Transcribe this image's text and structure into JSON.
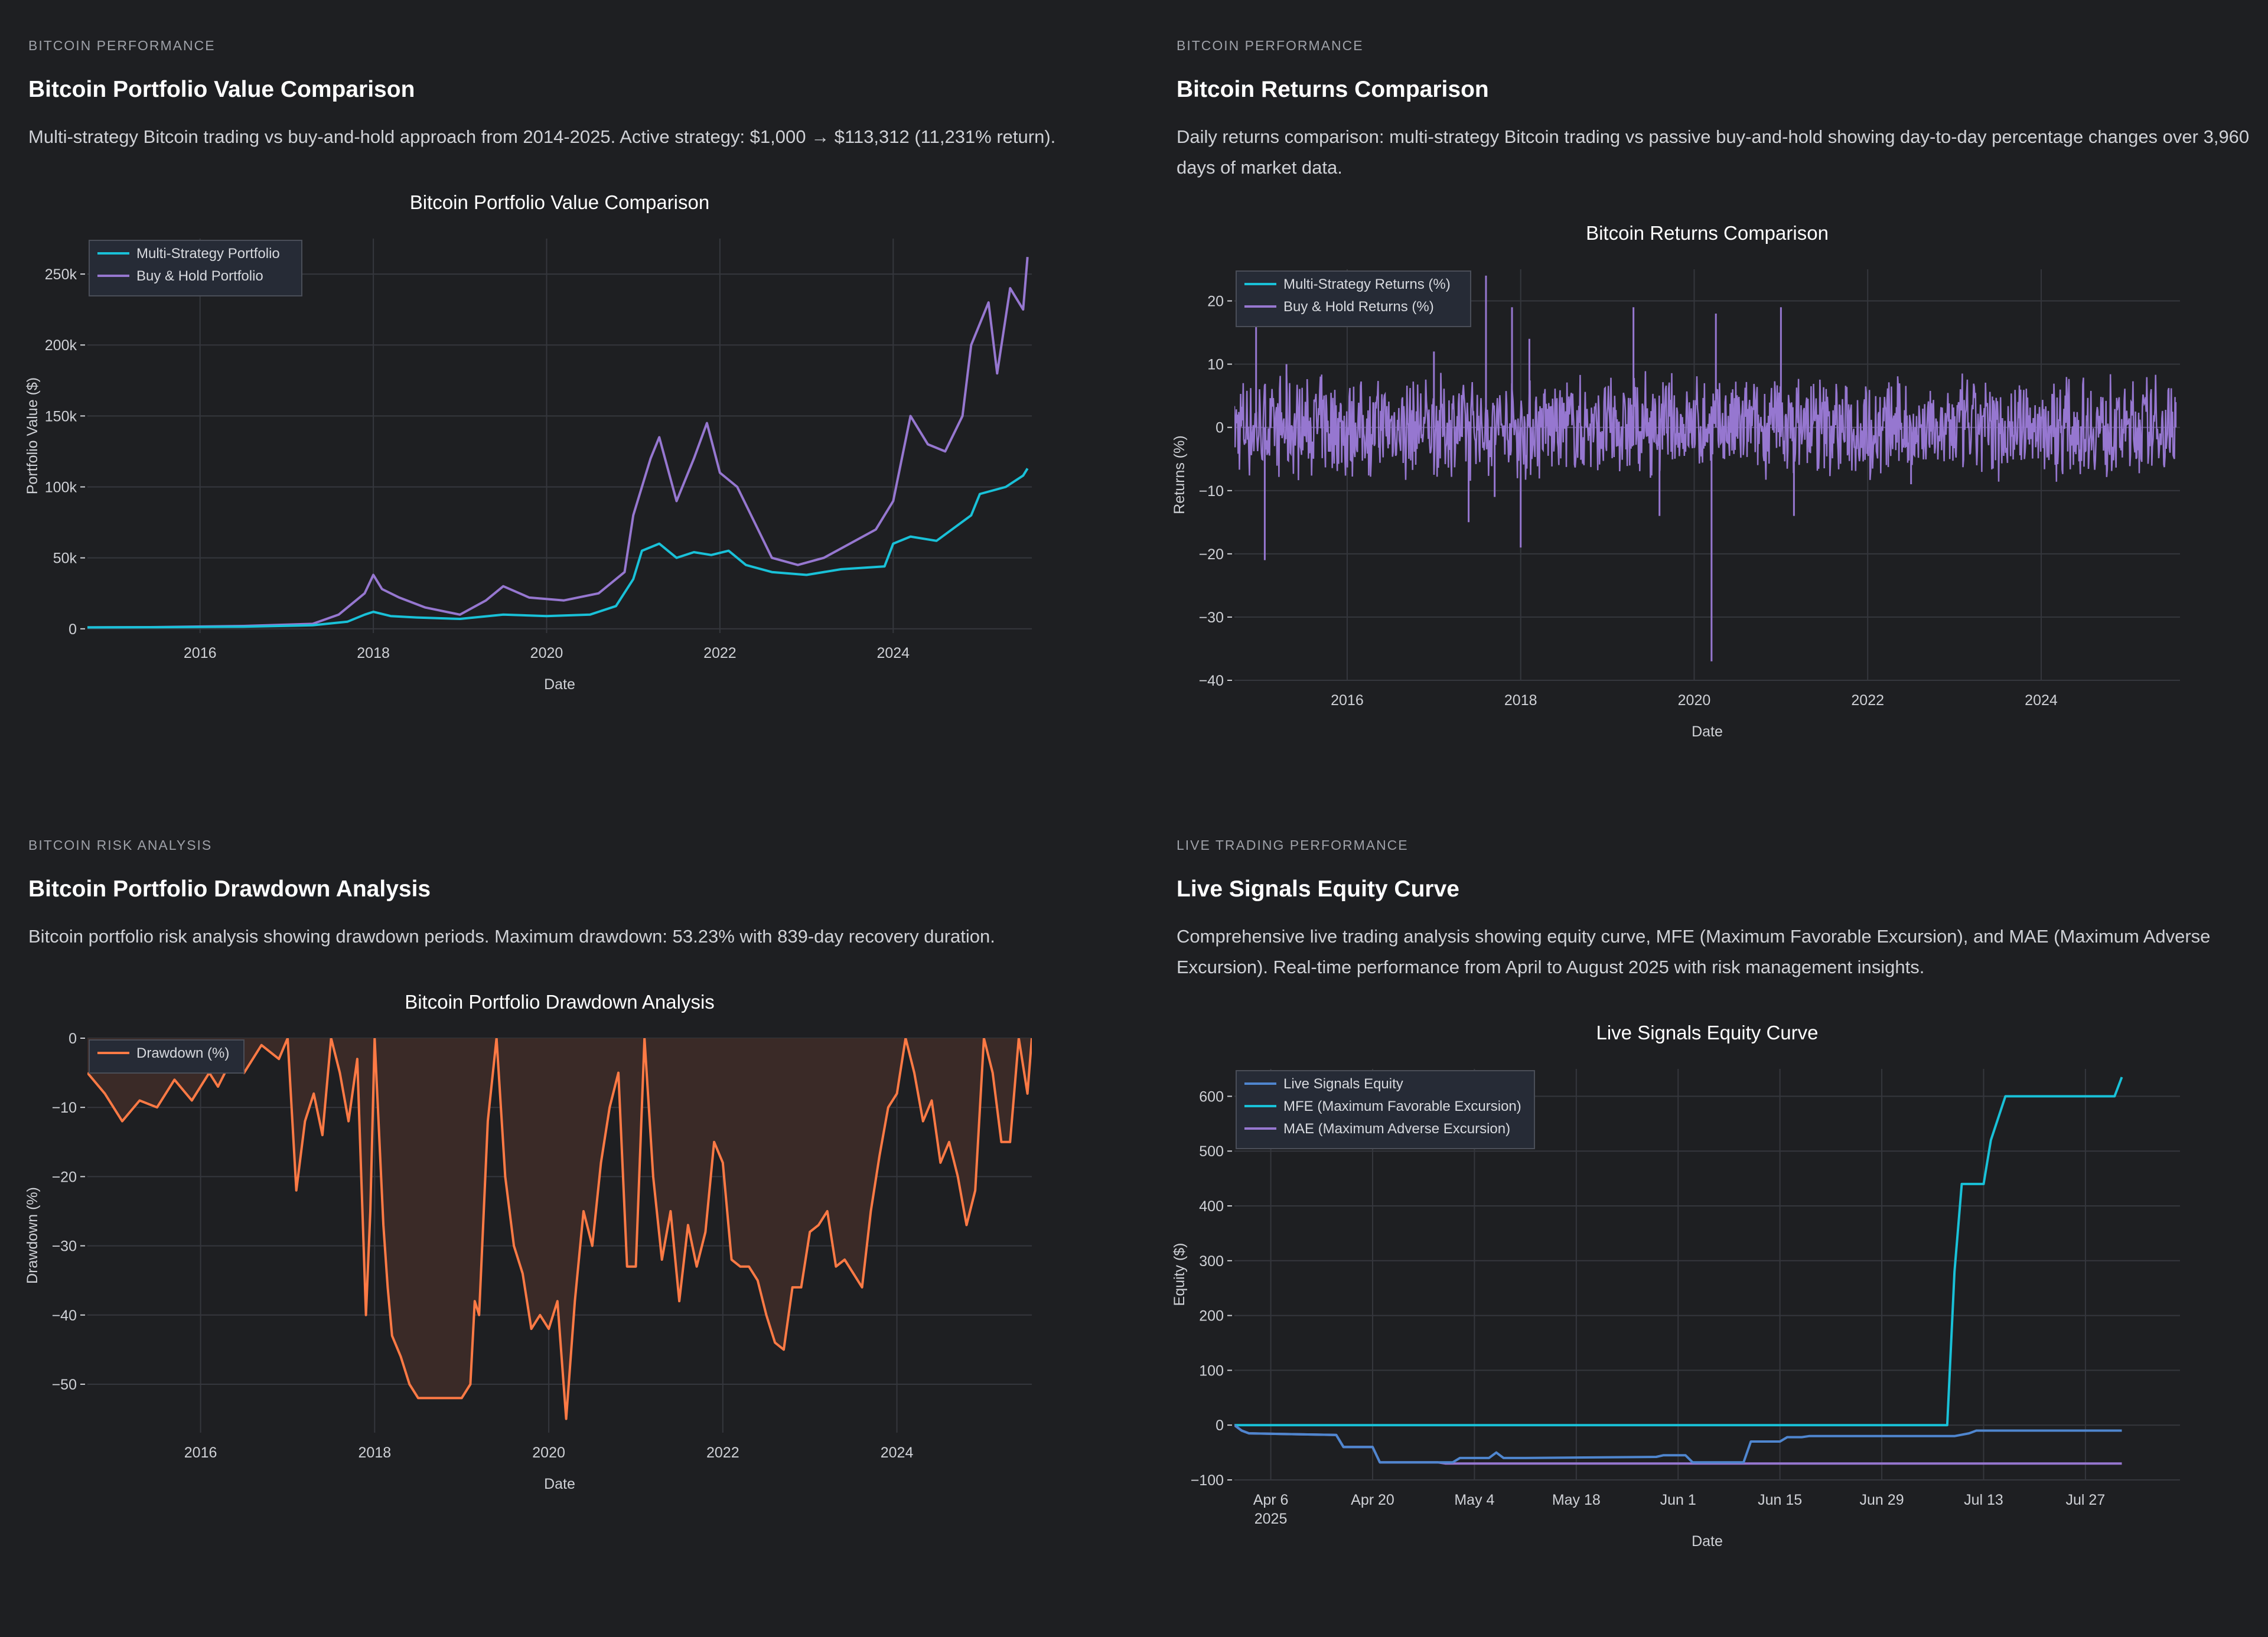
{
  "colors": {
    "background": "#1e1f22",
    "grid": "#35373d",
    "axis_text": "#cfd1d6",
    "legend_bg": "#262b36",
    "legend_border": "#4a4e58",
    "cyan": "#19c1d8",
    "purple": "#9677d0",
    "blue": "#4f86cf",
    "orange": "#ff7a45",
    "drawdown_fill": "#3a2a27"
  },
  "panels": [
    {
      "eyebrow": "BITCOIN PERFORMANCE",
      "title": "Bitcoin Portfolio Value Comparison",
      "description": "Multi-strategy Bitcoin trading vs buy-and-hold approach from 2014-2025. Active strategy: $1,000 → $113,312 (11,231% return)."
    },
    {
      "eyebrow": "BITCOIN PERFORMANCE",
      "title": "Bitcoin Returns Comparison",
      "description": "Daily returns comparison: multi-strategy Bitcoin trading vs passive buy-and-hold showing day-to-day percentage changes over 3,960 days of market data."
    },
    {
      "eyebrow": "BITCOIN RISK ANALYSIS",
      "title": "Bitcoin Portfolio Drawdown Analysis",
      "description": "Bitcoin portfolio risk analysis showing drawdown periods. Maximum drawdown: 53.23% with 839-day recovery duration."
    },
    {
      "eyebrow": "LIVE TRADING PERFORMANCE",
      "title": "Live Signals Equity Curve",
      "description": "Comprehensive live trading analysis showing equity curve, MFE (Maximum Favorable Excursion), and MAE (Maximum Adverse Excursion). Real-time performance from April to August 2025 with risk management insights."
    }
  ],
  "chart_data": [
    {
      "type": "line",
      "title": "Bitcoin Portfolio Value Comparison",
      "xlabel": "Date",
      "ylabel": "Portfolio Value ($)",
      "xlim": [
        2014.7,
        2025.6
      ],
      "ylim": [
        -3000,
        275000
      ],
      "xticks": [
        2016,
        2018,
        2020,
        2022,
        2024
      ],
      "xtick_labels": [
        "2016",
        "2018",
        "2020",
        "2022",
        "2024"
      ],
      "yticks": [
        0,
        50000,
        100000,
        150000,
        200000,
        250000
      ],
      "ytick_labels": [
        "0",
        "50k",
        "100k",
        "150k",
        "200k",
        "250k"
      ],
      "legend_position": "top-left",
      "series": [
        {
          "name": "Multi-Strategy Portfolio",
          "color": "#19c1d8",
          "x": [
            2014.7,
            2015.5,
            2016.5,
            2017.3,
            2017.7,
            2017.9,
            2018.0,
            2018.2,
            2018.5,
            2019.0,
            2019.5,
            2020.0,
            2020.5,
            2020.8,
            2021.0,
            2021.1,
            2021.3,
            2021.5,
            2021.7,
            2021.9,
            2022.1,
            2022.3,
            2022.6,
            2023.0,
            2023.4,
            2023.9,
            2024.0,
            2024.2,
            2024.5,
            2024.9,
            2025.0,
            2025.3,
            2025.5,
            2025.55
          ],
          "y": [
            1000,
            1100,
            1500,
            2500,
            5000,
            10000,
            12000,
            9000,
            8000,
            7000,
            10000,
            9000,
            10000,
            16000,
            35000,
            55000,
            60000,
            50000,
            54000,
            52000,
            55000,
            45000,
            40000,
            38000,
            42000,
            44000,
            60000,
            65000,
            62000,
            80000,
            95000,
            100000,
            108000,
            113000
          ]
        },
        {
          "name": "Buy & Hold Portfolio",
          "color": "#9677d0",
          "x": [
            2014.7,
            2015.5,
            2016.5,
            2017.3,
            2017.6,
            2017.9,
            2018.0,
            2018.1,
            2018.3,
            2018.6,
            2019.0,
            2019.3,
            2019.5,
            2019.8,
            2020.2,
            2020.6,
            2020.9,
            2021.0,
            2021.2,
            2021.3,
            2021.5,
            2021.7,
            2021.85,
            2022.0,
            2022.2,
            2022.4,
            2022.6,
            2022.9,
            2023.2,
            2023.5,
            2023.8,
            2024.0,
            2024.2,
            2024.4,
            2024.6,
            2024.8,
            2024.9,
            2025.1,
            2025.2,
            2025.35,
            2025.5,
            2025.55
          ],
          "y": [
            1000,
            1200,
            2000,
            3500,
            10000,
            25000,
            38000,
            28000,
            22000,
            15000,
            10000,
            20000,
            30000,
            22000,
            20000,
            25000,
            40000,
            80000,
            120000,
            135000,
            90000,
            120000,
            145000,
            110000,
            100000,
            75000,
            50000,
            45000,
            50000,
            60000,
            70000,
            90000,
            150000,
            130000,
            125000,
            150000,
            200000,
            230000,
            180000,
            240000,
            225000,
            262000
          ]
        }
      ]
    },
    {
      "type": "line",
      "title": "Bitcoin Returns Comparison",
      "xlabel": "Date",
      "ylabel": "Returns (%)",
      "xlim": [
        2014.7,
        2025.6
      ],
      "ylim": [
        -40,
        25
      ],
      "xticks": [
        2016,
        2018,
        2020,
        2022,
        2024
      ],
      "xtick_labels": [
        "2016",
        "2018",
        "2020",
        "2022",
        "2024"
      ],
      "yticks": [
        -40,
        -30,
        -20,
        -10,
        0,
        10,
        20
      ],
      "ytick_labels": [
        "−40",
        "−30",
        "−20",
        "−10",
        "0",
        "10",
        "20"
      ],
      "legend_position": "top-left",
      "series": [
        {
          "name": "Multi-Strategy Returns (%)",
          "color": "#19c1d8",
          "x": [
            2014.7,
            2025.55
          ],
          "y": [
            0,
            0
          ]
        },
        {
          "name": "Buy & Hold Returns (%)",
          "color": "#9677d0",
          "x": [
            2014.7,
            2014.95,
            2015.05,
            2015.3,
            2017.0,
            2017.4,
            2017.6,
            2017.7,
            2017.9,
            2018.0,
            2018.1,
            2019.3,
            2019.6,
            2020.2,
            2020.25,
            2021.0,
            2021.15,
            2022.5,
            2025.55
          ],
          "y": [
            0,
            18,
            -21,
            10,
            12,
            -15,
            24,
            -11,
            19,
            -19,
            14,
            19,
            -14,
            -37,
            18,
            19,
            -14,
            -9,
            4
          ]
        }
      ]
    },
    {
      "type": "area",
      "title": "Bitcoin Portfolio Drawdown Analysis",
      "xlabel": "Date",
      "ylabel": "Drawdown (%)",
      "xlim": [
        2014.7,
        2025.55
      ],
      "ylim": [
        -57,
        0
      ],
      "xticks": [
        2016,
        2018,
        2020,
        2022,
        2024
      ],
      "xtick_labels": [
        "2016",
        "2018",
        "2020",
        "2022",
        "2024"
      ],
      "yticks": [
        -50,
        -40,
        -30,
        -20,
        -10,
        0
      ],
      "ytick_labels": [
        "−50",
        "−40",
        "−30",
        "−20",
        "−10",
        "0"
      ],
      "legend_position": "top-left",
      "series": [
        {
          "name": "Drawdown (%)",
          "color": "#ff7a45",
          "x": [
            2014.7,
            2014.9,
            2015.1,
            2015.3,
            2015.5,
            2015.7,
            2015.9,
            2016.1,
            2016.2,
            2016.4,
            2016.5,
            2016.7,
            2016.9,
            2017.0,
            2017.1,
            2017.2,
            2017.3,
            2017.4,
            2017.5,
            2017.6,
            2017.7,
            2017.8,
            2017.9,
            2017.95,
            2018.0,
            2018.1,
            2018.15,
            2018.2,
            2018.3,
            2018.4,
            2018.5,
            2018.6,
            2018.7,
            2018.8,
            2018.9,
            2019.0,
            2019.1,
            2019.15,
            2019.2,
            2019.3,
            2019.4,
            2019.5,
            2019.6,
            2019.7,
            2019.8,
            2019.9,
            2020.0,
            2020.1,
            2020.2,
            2020.3,
            2020.4,
            2020.5,
            2020.6,
            2020.7,
            2020.8,
            2020.9,
            2021.0,
            2021.1,
            2021.2,
            2021.3,
            2021.4,
            2021.5,
            2021.6,
            2021.7,
            2021.8,
            2021.9,
            2022.0,
            2022.1,
            2022.2,
            2022.3,
            2022.4,
            2022.5,
            2022.6,
            2022.7,
            2022.8,
            2022.9,
            2023.0,
            2023.1,
            2023.2,
            2023.3,
            2023.4,
            2023.5,
            2023.6,
            2023.7,
            2023.8,
            2023.9,
            2024.0,
            2024.1,
            2024.2,
            2024.3,
            2024.4,
            2024.5,
            2024.6,
            2024.7,
            2024.8,
            2024.9,
            2025.0,
            2025.1,
            2025.2,
            2025.3,
            2025.4,
            2025.5,
            2025.55
          ],
          "y": [
            -5,
            -8,
            -12,
            -9,
            -10,
            -6,
            -9,
            -5,
            -7,
            -2,
            -5,
            -1,
            -3,
            0,
            -22,
            -12,
            -8,
            -14,
            0,
            -5,
            -12,
            -3,
            -40,
            -25,
            0,
            -27,
            -36,
            -43,
            -46,
            -50,
            -52,
            -52,
            -52,
            -52,
            -52,
            -52,
            -50,
            -38,
            -40,
            -12,
            0,
            -20,
            -30,
            -34,
            -42,
            -40,
            -42,
            -38,
            -55,
            -38,
            -25,
            -30,
            -18,
            -10,
            -5,
            -33,
            -33,
            0,
            -20,
            -32,
            -25,
            -38,
            -27,
            -33,
            -28,
            -15,
            -18,
            -32,
            -33,
            -33,
            -35,
            -40,
            -44,
            -45,
            -36,
            -36,
            -28,
            -27,
            -25,
            -33,
            -32,
            -34,
            -36,
            -25,
            -17,
            -10,
            -8,
            0,
            -5,
            -12,
            -9,
            -18,
            -15,
            -20,
            -27,
            -22,
            0,
            -5,
            -15,
            -15,
            0,
            -8,
            0
          ]
        }
      ]
    },
    {
      "type": "line",
      "title": "Live Signals Equity Curve",
      "xlabel": "Date",
      "ylabel": "Equity ($)",
      "xlim": [
        0,
        130
      ],
      "ylim": [
        -100,
        650
      ],
      "xticks": [
        5,
        19,
        33,
        47,
        61,
        75,
        89,
        103,
        117
      ],
      "xtick_labels": [
        "Apr 6\n2025",
        "Apr 20",
        "May 4",
        "May 18",
        "Jun 1",
        "Jun 15",
        "Jun 29",
        "Jul 13",
        "Jul 27"
      ],
      "yticks": [
        -100,
        0,
        100,
        200,
        300,
        400,
        500,
        600
      ],
      "ytick_labels": [
        "−100",
        "0",
        "100",
        "200",
        "300",
        "400",
        "500",
        "600"
      ],
      "legend_position": "top-left",
      "series": [
        {
          "name": "Live Signals Equity",
          "color": "#4f86cf",
          "x": [
            0,
            1,
            2,
            14,
            15,
            19,
            20,
            30,
            31,
            35,
            36,
            37,
            40,
            58,
            59,
            62,
            63,
            70,
            71,
            75,
            76,
            78,
            79,
            87,
            98,
            99,
            101,
            102,
            103,
            104,
            105,
            106,
            107,
            108,
            110,
            116,
            120,
            122
          ],
          "y": [
            0,
            -10,
            -15,
            -18,
            -40,
            -40,
            -68,
            -68,
            -60,
            -60,
            -50,
            -60,
            -60,
            -58,
            -55,
            -55,
            -68,
            -68,
            -30,
            -30,
            -22,
            -22,
            -20,
            -20,
            -20,
            -20,
            -15,
            -10,
            -10,
            -10,
            -10,
            -10,
            -10,
            -10,
            -10,
            -10,
            -10,
            -10
          ]
        },
        {
          "name": "MFE (Maximum Favorable Excursion)",
          "color": "#19c1d8",
          "x": [
            0,
            98,
            99,
            100,
            101,
            103,
            104,
            105,
            106,
            107,
            110,
            116,
            121,
            122
          ],
          "y": [
            0,
            0,
            280,
            440,
            440,
            440,
            520,
            560,
            600,
            600,
            600,
            600,
            600,
            635
          ]
        },
        {
          "name": "MAE (Maximum Adverse Excursion)",
          "color": "#9677d0",
          "x": [
            0,
            1,
            2,
            14,
            15,
            19,
            20,
            28,
            29,
            122
          ],
          "y": [
            0,
            -10,
            -15,
            -18,
            -40,
            -40,
            -68,
            -68,
            -70,
            -70
          ]
        }
      ]
    }
  ]
}
